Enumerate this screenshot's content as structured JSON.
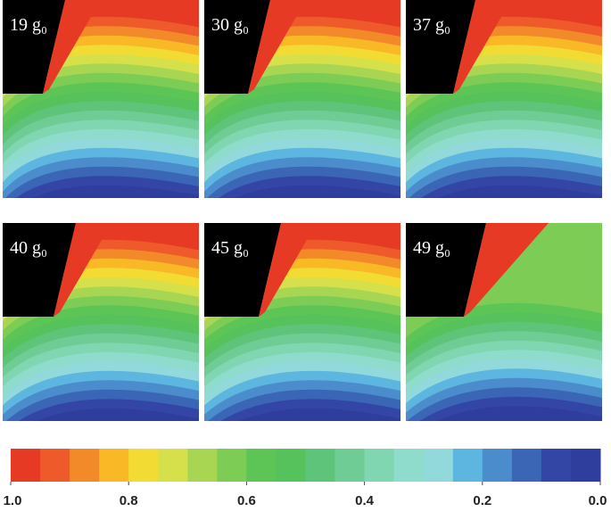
{
  "panels": [
    {
      "label": "19 g₀"
    },
    {
      "label": "30 g₀"
    },
    {
      "label": "37 g₀"
    },
    {
      "label": "40 g₀"
    },
    {
      "label": "45 g₀"
    },
    {
      "label": "49 g₀"
    }
  ],
  "colorbar": {
    "lim": [
      1,
      0
    ],
    "ticks": [
      {
        "value": 1,
        "label": "1.0"
      },
      {
        "value": 0.8,
        "label": "0.8"
      },
      {
        "value": 0.6,
        "label": "0.6"
      },
      {
        "value": 0.4,
        "label": "0.4"
      },
      {
        "value": 0.2,
        "label": "0.2"
      },
      {
        "value": 0,
        "label": "0.0"
      }
    ],
    "colors": [
      "#e63a25",
      "#ee5a2a",
      "#f38a2a",
      "#f9b825",
      "#f2dc33",
      "#d6e04a",
      "#a8d653",
      "#7ccc55",
      "#5cc556",
      "#55c25c",
      "#5ec47a",
      "#6fcc94",
      "#80d6b0",
      "#8fdccd",
      "#92d9dc",
      "#5cb6e0",
      "#4a8ccc",
      "#3b66b6",
      "#3346a6",
      "#2f3d9c"
    ]
  }
}
